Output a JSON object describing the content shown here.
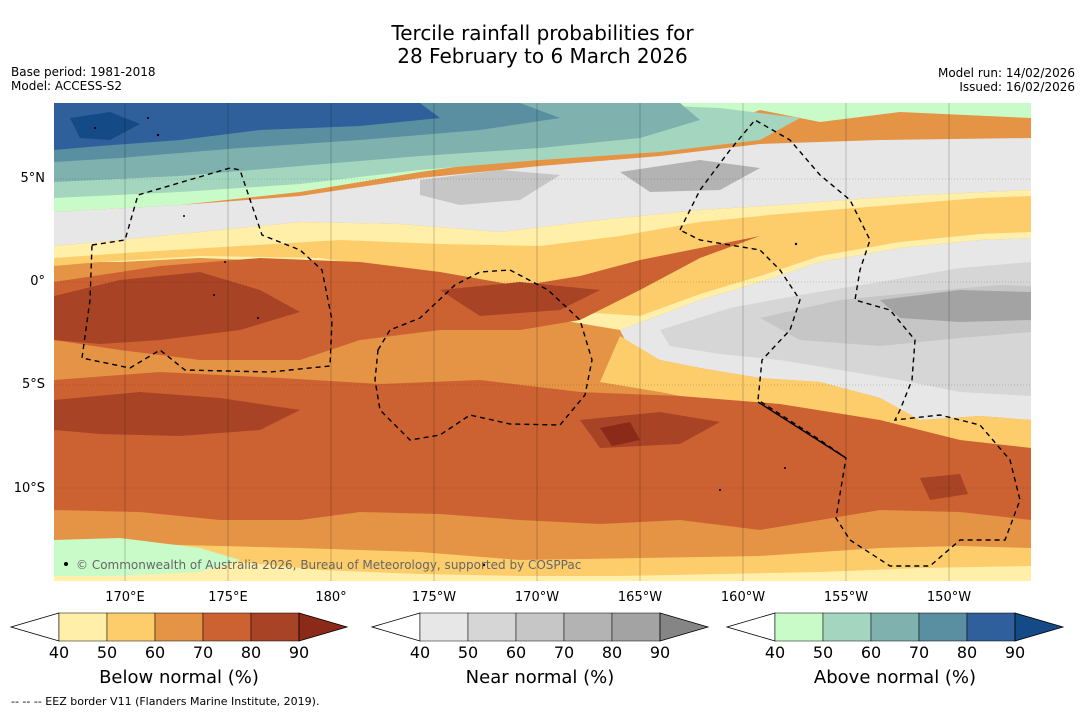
{
  "header": {
    "title_line1": "Tercile rainfall probabilities for",
    "title_line2": "28 February to 6 March 2026",
    "base_period": "Base period: 1981-2018",
    "model": "Model: ACCESS-S2",
    "model_run": "Model run: 14/02/2026",
    "issued": "Issued: 16/02/2026"
  },
  "map": {
    "lat_ticks": [
      "5°N",
      "0°",
      "5°S",
      "10°S"
    ],
    "lon_ticks": [
      "170°E",
      "175°E",
      "180°",
      "175°W",
      "170°W",
      "165°W",
      "160°W",
      "155°W",
      "150°W"
    ],
    "copyright": "© Commonwealth of Australia 2026, Bureau of Meteorology, supported by COSPPac"
  },
  "colorbars": [
    {
      "name": "below-normal",
      "label": "Below normal (%)",
      "ticks": [
        "40",
        "50",
        "60",
        "70",
        "80",
        "90"
      ],
      "colors": [
        "#ffefa8",
        "#fdcd6c",
        "#e59345",
        "#cc6232",
        "#a94326",
        "#8c2a1a"
      ]
    },
    {
      "name": "near-normal",
      "label": "Near normal (%)",
      "ticks": [
        "40",
        "50",
        "60",
        "70",
        "80",
        "90"
      ],
      "colors": [
        "#e7e7e7",
        "#d6d6d6",
        "#c6c6c6",
        "#b3b3b3",
        "#a3a3a3",
        "#858585"
      ]
    },
    {
      "name": "above-normal",
      "label": "Above normal (%)",
      "ticks": [
        "40",
        "50",
        "60",
        "70",
        "80",
        "90"
      ],
      "colors": [
        "#c9fbc9",
        "#a4d6bf",
        "#7fb1ae",
        "#5a8ea1",
        "#30609b",
        "#144a86"
      ]
    }
  ],
  "footnote": "--  --  -- EEZ border V11 (Flanders Marine Institute, 2019)."
}
